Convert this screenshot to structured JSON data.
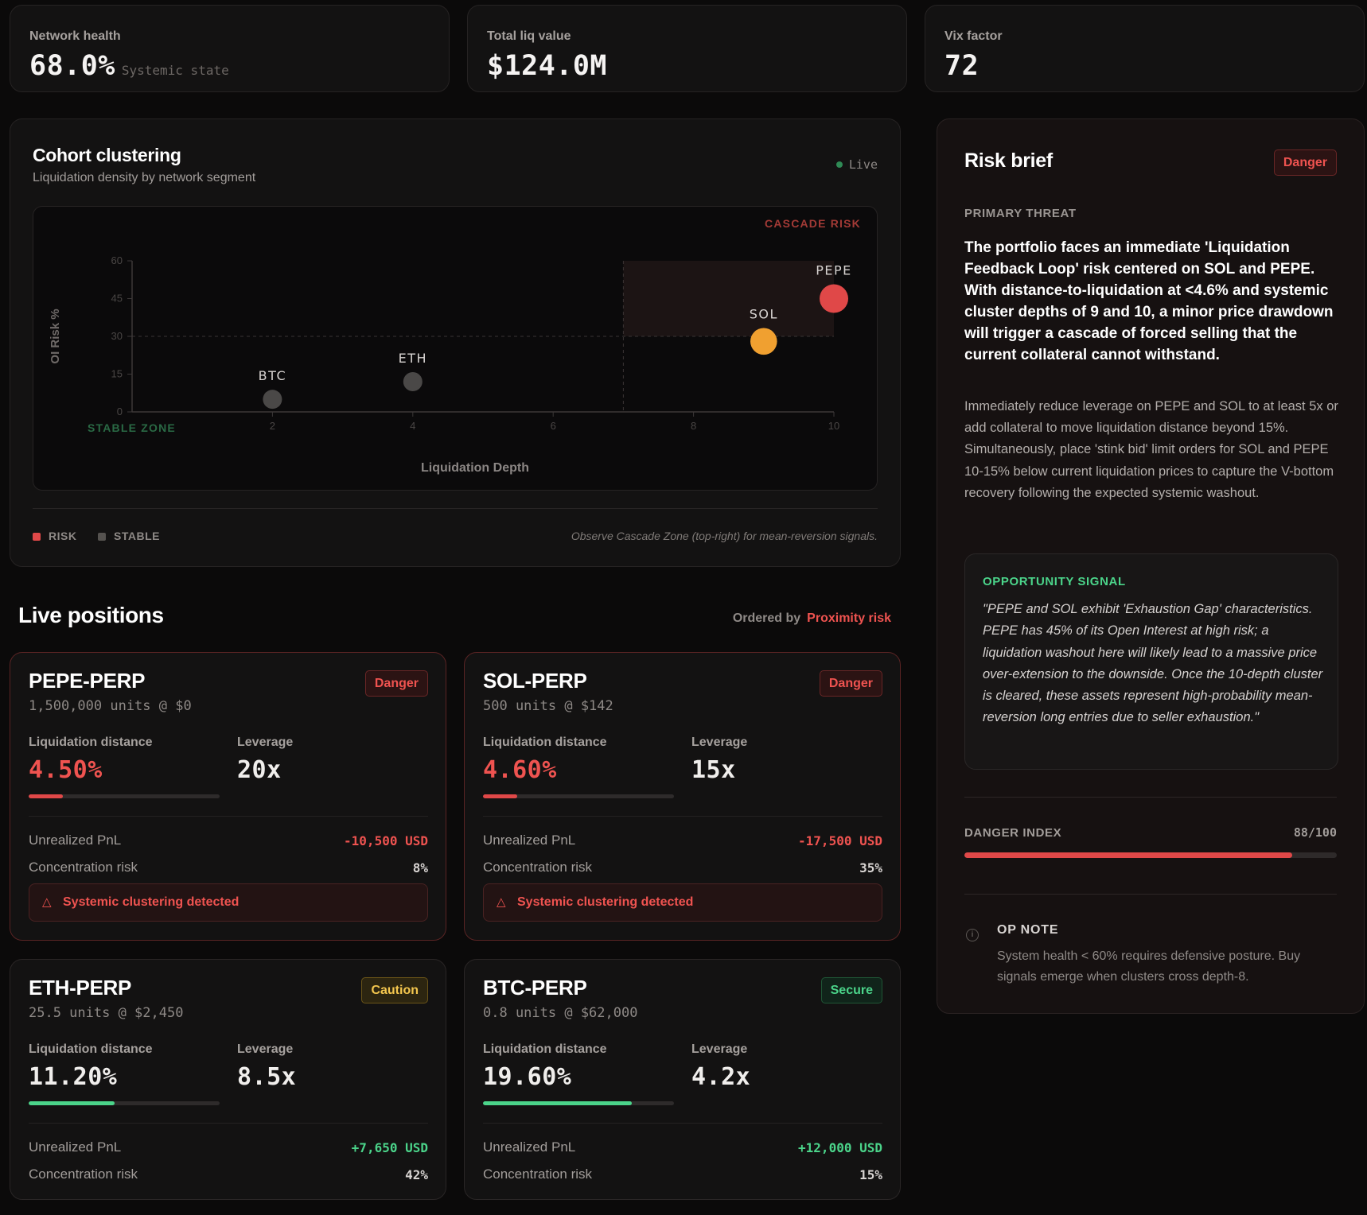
{
  "stats": [
    {
      "label": "Network health",
      "value": "68.0%",
      "sub": "Systemic state"
    },
    {
      "label": "Total liq value",
      "value": "$124.0M",
      "sub": ""
    },
    {
      "label": "Vix factor",
      "value": "72",
      "sub": ""
    }
  ],
  "cohort": {
    "title": "Cohort clustering",
    "subtitle": "Liquidation density by network segment",
    "live_label": "Live",
    "cascade_label": "CASCADE RISK",
    "stable_label": "STABLE ZONE",
    "legend": [
      {
        "label": "RISK",
        "color": "#e04848"
      },
      {
        "label": "STABLE",
        "color": "#55524f"
      }
    ],
    "note": "Observe Cascade Zone (top-right) for mean-reversion signals."
  },
  "chart_data": {
    "type": "scatter",
    "xlabel": "Liquidation Depth",
    "ylabel": "OI Risk %",
    "xlim": [
      0,
      10
    ],
    "ylim": [
      0,
      60
    ],
    "xticks": [
      2,
      4,
      6,
      8,
      10
    ],
    "yticks": [
      0,
      15,
      30,
      45,
      60
    ],
    "threshold_x": 7,
    "threshold_y": 30,
    "points": [
      {
        "label": "BTC",
        "x": 2,
        "y": 5,
        "size": 1,
        "color": "#4a4847"
      },
      {
        "label": "ETH",
        "x": 4,
        "y": 12,
        "size": 1,
        "color": "#4a4847"
      },
      {
        "label": "SOL",
        "x": 9,
        "y": 28,
        "size": 1.4,
        "color": "#f0a030"
      },
      {
        "label": "PEPE",
        "x": 10,
        "y": 45,
        "size": 1.5,
        "color": "#e04848"
      }
    ]
  },
  "positions": {
    "title": "Live positions",
    "ordered_by_label": "Ordered by",
    "ordered_by_value": "Proximity risk",
    "liq_label": "Liquidation distance",
    "lev_label": "Leverage",
    "pnl_label": "Unrealized PnL",
    "conc_label": "Concentration risk",
    "alert_text": "Systemic clustering detected",
    "cards": [
      {
        "name": "PEPE-PERP",
        "units": "1,500,000 units @ $0",
        "status": "Danger",
        "liq": "4.50%",
        "liq_fraction": 0.18,
        "lev": "20x",
        "pnl": "-10,500 USD",
        "conc": "8%"
      },
      {
        "name": "SOL-PERP",
        "units": "500 units @ $142",
        "status": "Danger",
        "liq": "4.60%",
        "liq_fraction": 0.18,
        "lev": "15x",
        "pnl": "-17,500 USD",
        "conc": "35%"
      },
      {
        "name": "ETH-PERP",
        "units": "25.5 units @ $2,450",
        "status": "Caution",
        "liq": "11.20%",
        "liq_fraction": 0.45,
        "lev": "8.5x",
        "pnl": "+7,650 USD",
        "conc": "42%"
      },
      {
        "name": "BTC-PERP",
        "units": "0.8 units @ $62,000",
        "status": "Secure",
        "liq": "19.60%",
        "liq_fraction": 0.78,
        "lev": "4.2x",
        "pnl": "+12,000 USD",
        "conc": "15%"
      }
    ]
  },
  "brief": {
    "title": "Risk brief",
    "badge": "Danger",
    "threat_label": "PRIMARY THREAT",
    "threat_text": "The portfolio faces an immediate 'Liquidation Feedback Loop' risk centered on SOL and PEPE. With distance-to-liquidation at <4.6% and systemic cluster depths of 9 and 10, a minor price drawdown will trigger a cascade of forced selling that the current collateral cannot withstand.",
    "action_text": "Immediately reduce leverage on PEPE and SOL to at least 5x or add collateral to move liquidation distance beyond 15%. Simultaneously, place 'stink bid' limit orders for SOL and PEPE 10-15% below current liquidation prices to capture the V-bottom recovery following the expected systemic washout.",
    "opportunity_label": "OPPORTUNITY SIGNAL",
    "opportunity_text": "\"PEPE and SOL exhibit 'Exhaustion Gap' characteristics. PEPE has 45% of its Open Interest at high risk; a liquidation washout here will likely lead to a massive price over-extension to the downside. Once the 10-depth cluster is cleared, these assets represent high-probability mean-reversion long entries due to seller exhaustion.\"",
    "danger_index_label": "DANGER INDEX",
    "danger_index_value": "88/100",
    "danger_index_fraction": 0.88,
    "op_note_label": "OP NOTE",
    "op_note_text": "System health < 60% requires defensive posture. Buy signals emerge when clusters cross depth-8."
  }
}
